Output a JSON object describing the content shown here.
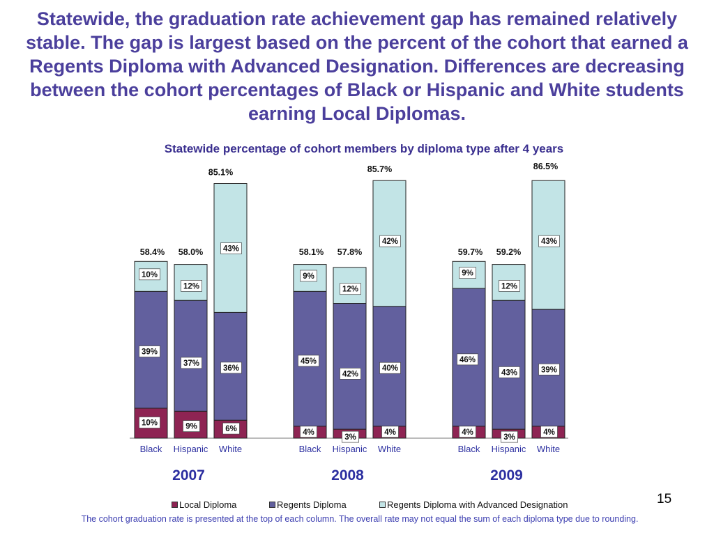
{
  "headline": "Statewide, the graduation rate achievement gap has remained relatively stable. The gap is largest based on the percent of the cohort that earned a Regents Diploma with Advanced Designation. Differences are decreasing between the cohort percentages of Black or Hispanic and White students earning Local Diplomas.",
  "page_number": "15",
  "footnote": "The cohort graduation rate is presented at the top of each column. The overall rate may not equal the sum of each diploma type due to rounding.",
  "colors": {
    "local": "#8e2453",
    "regents": "#62609e",
    "advanced": "#c2e4e6",
    "headline": "#4b3f9c"
  },
  "chart_data": {
    "type": "bar",
    "stacked": true,
    "title": "Statewide percentage of cohort members by diploma type after 4 years",
    "ylabel": "",
    "ylim": [
      0,
      100
    ],
    "legend": [
      "Local Diploma",
      "Regents Diploma",
      "Regents Diploma with Advanced Designation"
    ],
    "series_names": [
      "Local Diploma",
      "Regents Diploma",
      "Regents Diploma with Advanced Designation"
    ],
    "groups": [
      {
        "year": "2007",
        "bars": [
          {
            "label": "Black",
            "total": "58.4%",
            "values": [
              10,
              39,
              10
            ],
            "labels": [
              "10%",
              "39%",
              "10%"
            ]
          },
          {
            "label": "Hispanic",
            "total": "58.0%",
            "values": [
              9,
              37,
              12
            ],
            "labels": [
              "9%",
              "37%",
              "12%"
            ]
          },
          {
            "label": "White",
            "total": "85.1%",
            "values": [
              6,
              36,
              43
            ],
            "labels": [
              "6%",
              "36%",
              "43%"
            ]
          }
        ]
      },
      {
        "year": "2008",
        "bars": [
          {
            "label": "Black",
            "total": "58.1%",
            "values": [
              4,
              45,
              9
            ],
            "labels": [
              "4%",
              "45%",
              "9%"
            ]
          },
          {
            "label": "Hispanic",
            "total": "57.8%",
            "values": [
              3,
              42,
              12
            ],
            "labels": [
              "3%",
              "42%",
              "12%"
            ]
          },
          {
            "label": "White",
            "total": "85.7%",
            "values": [
              4,
              40,
              42
            ],
            "labels": [
              "4%",
              "40%",
              "42%"
            ]
          }
        ]
      },
      {
        "year": "2009",
        "bars": [
          {
            "label": "Black",
            "total": "59.7%",
            "values": [
              4,
              46,
              9
            ],
            "labels": [
              "4%",
              "46%",
              "9%"
            ]
          },
          {
            "label": "Hispanic",
            "total": "59.2%",
            "values": [
              3,
              43,
              12
            ],
            "labels": [
              "3%",
              "43%",
              "12%"
            ]
          },
          {
            "label": "White",
            "total": "86.5%",
            "values": [
              4,
              39,
              43
            ],
            "labels": [
              "4%",
              "39%",
              "43%"
            ]
          }
        ]
      }
    ],
    "footnote": "The cohort graduation rate is presented at the top of each column. The overall rate may not equal the sum of each diploma type due to rounding."
  }
}
